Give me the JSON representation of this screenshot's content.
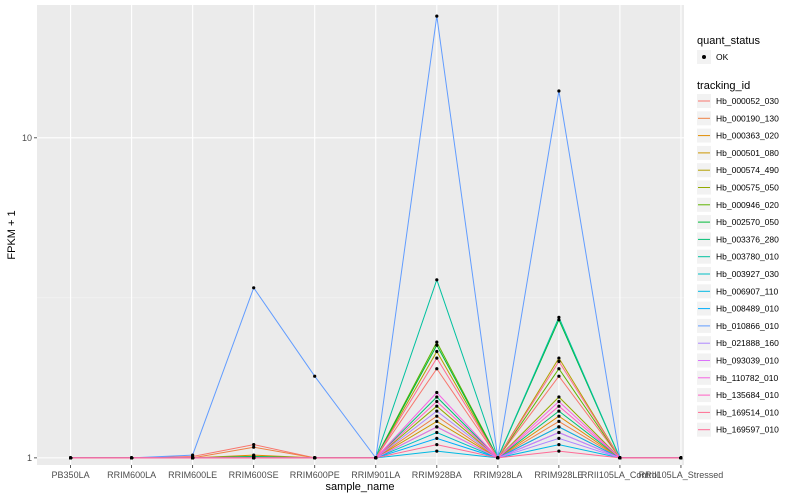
{
  "chart_data": {
    "type": "line",
    "xlabel": "sample_name",
    "ylabel": "FPKM + 1",
    "y_scale": "log10",
    "ylim": [
      0.95,
      26
    ],
    "y_ticks": [
      {
        "value": 1,
        "label": "1"
      },
      {
        "value": 10,
        "label": "10"
      }
    ],
    "grid": true,
    "legend_position": "right",
    "categories": [
      "PB350LA",
      "RRIM600LA",
      "RRIM600LE",
      "RRIM600SE",
      "RRIM600PE",
      "RRIM901LA",
      "RRIM928BA",
      "RRIM928LA",
      "RRIM928LE",
      "RRII105LA_Control",
      "RRII105LA_Stressed"
    ],
    "point_legend": {
      "title": "quant_status",
      "entries": [
        {
          "label": "OK"
        }
      ]
    },
    "line_legend_title": "tracking_id",
    "series": [
      {
        "name": "Hb_000052_030",
        "color": "#F8766D",
        "values": [
          1,
          1,
          1.01,
          1.1,
          1,
          1,
          1.9,
          1,
          1.8,
          1,
          1
        ]
      },
      {
        "name": "Hb_000190_130",
        "color": "#EE8044",
        "values": [
          1,
          1,
          1,
          1.08,
          1,
          1,
          1.35,
          1,
          1.3,
          1,
          1
        ]
      },
      {
        "name": "Hb_000363_020",
        "color": "#E08B00",
        "values": [
          1,
          1,
          1,
          1.02,
          1,
          1,
          1.25,
          1,
          1.35,
          1,
          1
        ]
      },
      {
        "name": "Hb_000501_080",
        "color": "#CC9600",
        "values": [
          1,
          1,
          1,
          1.01,
          1,
          1,
          1.3,
          1,
          1.25,
          1,
          1
        ]
      },
      {
        "name": "Hb_000574_490",
        "color": "#B3A000",
        "values": [
          1,
          1,
          1,
          1.0,
          1,
          1,
          2.15,
          1,
          2.05,
          1,
          1
        ]
      },
      {
        "name": "Hb_000575_050",
        "color": "#93AA00",
        "values": [
          1,
          1,
          1,
          1.01,
          1,
          1,
          1.45,
          1,
          1.55,
          1,
          1
        ]
      },
      {
        "name": "Hb_000946_020",
        "color": "#5EB300",
        "values": [
          1,
          1,
          1,
          1.0,
          1,
          1,
          2.3,
          1,
          1.9,
          1,
          1
        ]
      },
      {
        "name": "Hb_002570_050",
        "color": "#00BA38",
        "values": [
          1,
          1,
          1,
          1.0,
          1,
          1,
          2.25,
          1,
          2.7,
          1,
          1
        ]
      },
      {
        "name": "Hb_003376_280",
        "color": "#00BF74",
        "values": [
          1,
          1,
          1,
          1.01,
          1,
          1,
          1.55,
          1,
          1.4,
          1,
          1
        ]
      },
      {
        "name": "Hb_003780_010",
        "color": "#00C19F",
        "values": [
          1,
          1,
          1,
          1.0,
          1,
          1,
          3.6,
          1,
          2.75,
          1,
          1
        ]
      },
      {
        "name": "Hb_003927_030",
        "color": "#00BFC4",
        "values": [
          1,
          1,
          1,
          1.0,
          1,
          1,
          1.2,
          1,
          1.2,
          1,
          1
        ]
      },
      {
        "name": "Hb_006907_110",
        "color": "#00B9E3",
        "values": [
          1,
          1,
          1,
          1.0,
          1,
          1,
          1.05,
          1,
          1.1,
          1,
          1
        ]
      },
      {
        "name": "Hb_008489_010",
        "color": "#00ADFA",
        "values": [
          1,
          1,
          1,
          1.0,
          1,
          1,
          1.15,
          1,
          1.25,
          1,
          1
        ]
      },
      {
        "name": "Hb_010866_010",
        "color": "#619CFF",
        "values": [
          1,
          1,
          1.02,
          3.4,
          1.8,
          1,
          24.0,
          1,
          14.0,
          1,
          1
        ]
      },
      {
        "name": "Hb_021888_160",
        "color": "#AE87FF",
        "values": [
          1,
          1,
          1,
          1.0,
          1,
          1,
          1.4,
          1,
          1.15,
          1,
          1
        ]
      },
      {
        "name": "Hb_093039_010",
        "color": "#DB72FB",
        "values": [
          1,
          1,
          1,
          1.0,
          1,
          1,
          1.25,
          1,
          1.2,
          1,
          1
        ]
      },
      {
        "name": "Hb_110782_010",
        "color": "#F564E3",
        "values": [
          1,
          1,
          1,
          1.0,
          1,
          1,
          1.6,
          1,
          1.5,
          1,
          1
        ]
      },
      {
        "name": "Hb_135684_010",
        "color": "#FF61C3",
        "values": [
          1,
          1,
          1,
          1.0,
          1,
          1,
          1.5,
          1,
          1.45,
          1,
          1
        ]
      },
      {
        "name": "Hb_169514_010",
        "color": "#FF6C91",
        "values": [
          1,
          1,
          1,
          1.0,
          1,
          1,
          2.05,
          1,
          2.0,
          1,
          1
        ]
      },
      {
        "name": "Hb_169597_010",
        "color": "#FF6B96",
        "values": [
          1,
          1,
          1,
          1.0,
          1,
          1,
          1.1,
          1,
          1.05,
          1,
          1
        ]
      }
    ]
  }
}
